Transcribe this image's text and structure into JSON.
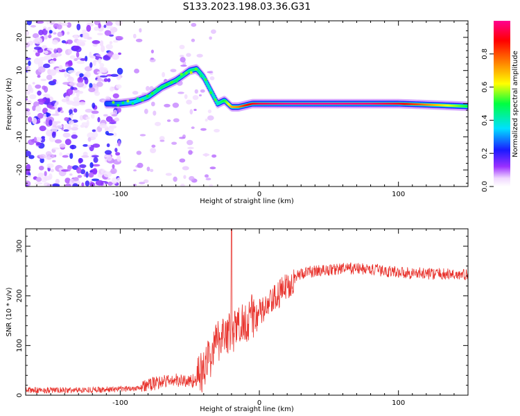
{
  "title": "S133.2023.198.03.36.G31",
  "chart_data": [
    {
      "type": "heatmap",
      "title": "S133.2023.198.03.36.G31",
      "xlabel": "Height of straight line (km)",
      "ylabel": "Frequency (Hz)",
      "xlim": [
        -168,
        150
      ],
      "ylim": [
        -25,
        25
      ],
      "xticks": [
        -100,
        0,
        100
      ],
      "xtick_labels": [
        "-100",
        "0",
        "100"
      ],
      "yticks": [
        -20,
        -10,
        0,
        10,
        20
      ],
      "ytick_labels": [
        "-20",
        "-10",
        "0",
        "10",
        "20"
      ],
      "colorbar": {
        "label": "Normalized spectral amplitude",
        "range": [
          0,
          1
        ],
        "ticks": [
          0.0,
          0.2,
          0.4,
          0.6,
          0.8
        ],
        "tick_labels": [
          "0.0",
          "0.2",
          "0.4",
          "0.6",
          "0.8"
        ],
        "colormap": "rainbow-white-to-red"
      },
      "ridge": {
        "x": [
          -110,
          -100,
          -90,
          -80,
          -70,
          -60,
          -50,
          -45,
          -40,
          -35,
          -30,
          -25,
          -20,
          -15,
          -10,
          -5,
          0,
          20,
          50,
          80,
          100,
          120,
          150
        ],
        "y": [
          0,
          0,
          0.5,
          2,
          5,
          7,
          10,
          10.5,
          8,
          4,
          0,
          1,
          -1,
          -1,
          -0.5,
          0,
          0,
          0,
          0,
          0,
          0,
          -0.3,
          -0.8
        ],
        "amplitude": [
          0.25,
          0.3,
          0.35,
          0.4,
          0.45,
          0.45,
          0.45,
          0.45,
          0.4,
          0.4,
          0.4,
          0.5,
          0.7,
          0.75,
          0.85,
          0.9,
          0.95,
          1.0,
          1.0,
          0.98,
          0.92,
          0.75,
          0.5
        ]
      },
      "noise_region": {
        "x": [
          -168,
          -110
        ],
        "y": [
          -25,
          25
        ],
        "amplitude": 0.15
      }
    },
    {
      "type": "line",
      "xlabel": "Height of straight line (km)",
      "ylabel": "SNR (10 * v/v)",
      "xlim": [
        -168,
        150
      ],
      "ylim": [
        0,
        335
      ],
      "xticks": [
        -100,
        0,
        100
      ],
      "xtick_labels": [
        "-100",
        "0",
        "100"
      ],
      "yticks": [
        0,
        100,
        200,
        300
      ],
      "ytick_labels": [
        "0",
        "100",
        "200",
        "300"
      ],
      "series": [
        {
          "color": "#e8322c",
          "x": [
            -168,
            -140,
            -120,
            -100,
            -90,
            -80,
            -70,
            -60,
            -50,
            -45,
            -40,
            -35,
            -30,
            -25,
            -20,
            -15,
            -10,
            -5,
            0,
            5,
            10,
            15,
            20,
            25,
            30,
            40,
            50,
            60,
            70,
            80,
            90,
            100,
            110,
            120,
            130,
            140,
            150
          ],
          "y": [
            10,
            10,
            11,
            12,
            14,
            20,
            28,
            30,
            28,
            32,
            50,
            80,
            110,
            130,
            120,
            140,
            150,
            160,
            165,
            175,
            190,
            205,
            220,
            235,
            245,
            250,
            252,
            255,
            255,
            253,
            250,
            248,
            246,
            245,
            244,
            243,
            242
          ]
        }
      ],
      "annotations": [
        {
          "x": -20,
          "y": 335,
          "text": ""
        }
      ]
    }
  ]
}
